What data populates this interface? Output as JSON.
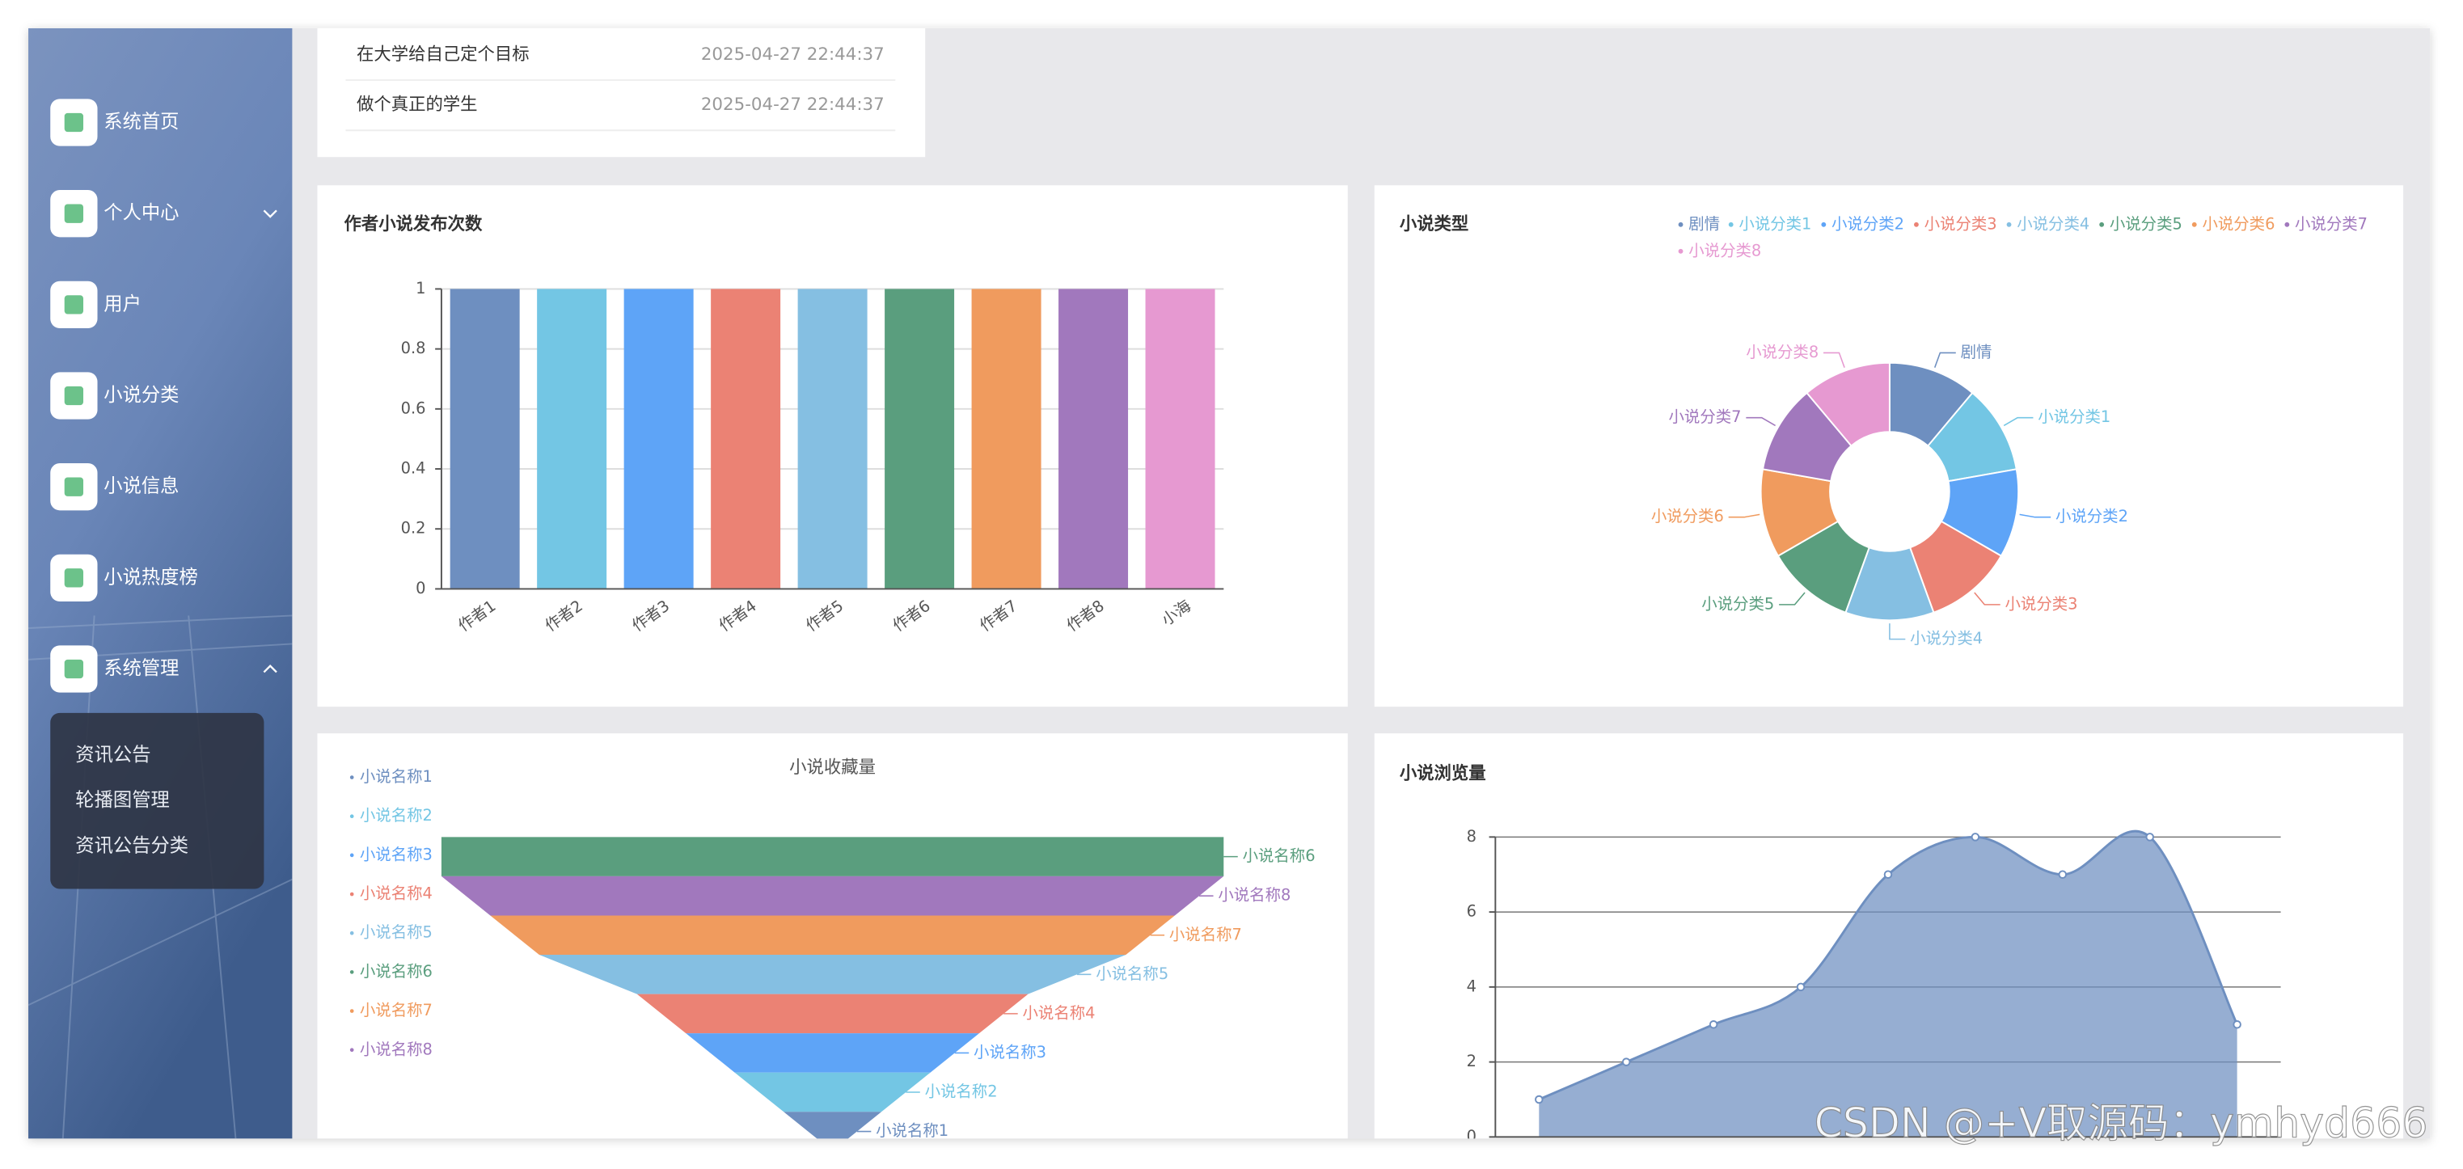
{
  "sidebar": {
    "menu": [
      "系统首页",
      "个人中心",
      "用户",
      "小说分类",
      "小说信息",
      "小说热度榜",
      "系统管理"
    ],
    "submenu": [
      "资讯公告",
      "轮播图管理",
      "资讯公告分类"
    ]
  },
  "notices": [
    {
      "title": "在大学给自己定个目标",
      "time": "2025-04-27 22:44:37"
    },
    {
      "title": "做个真正的学生",
      "time": "2025-04-27 22:44:37"
    }
  ],
  "chart_data": [
    {
      "type": "bar",
      "title": "作者小说发布次数",
      "categories": [
        "作者1",
        "作者2",
        "作者3",
        "作者4",
        "作者5",
        "作者6",
        "作者7",
        "作者8",
        "小海"
      ],
      "values": [
        1,
        1,
        1,
        1,
        1,
        1,
        1,
        1,
        1
      ],
      "colors": [
        "#6e8fc0",
        "#73c6e4",
        "#5ea4f7",
        "#eb8274",
        "#85bfe2",
        "#5a9e7e",
        "#f09b5e",
        "#a178bd",
        "#e699d1"
      ],
      "ylim": [
        0,
        1
      ],
      "yticks": [
        0,
        0.2,
        0.4,
        0.6,
        0.8,
        1
      ],
      "grid": true
    },
    {
      "type": "pie",
      "title": "小说类型",
      "categories": [
        "剧情",
        "小说分类1",
        "小说分类2",
        "小说分类3",
        "小说分类4",
        "小说分类5",
        "小说分类6",
        "小说分类7",
        "小说分类8"
      ],
      "values": [
        1,
        1,
        1,
        1,
        1,
        1,
        1,
        1,
        1
      ],
      "colors": [
        "#6e8fc0",
        "#73c6e4",
        "#5ea4f7",
        "#eb8274",
        "#85bfe2",
        "#5a9e7e",
        "#f09b5e",
        "#a178bd",
        "#e699d1"
      ],
      "donut": true,
      "legend": "top-right"
    },
    {
      "type": "funnel",
      "title": "小说收藏量",
      "legend": [
        "小说名称1",
        "小说名称2",
        "小说名称3",
        "小说名称4",
        "小说名称5",
        "小说名称6",
        "小说名称7",
        "小说名称8"
      ],
      "categories": [
        "小说名称6",
        "小说名称8",
        "小说名称7",
        "小说名称5",
        "小说名称4",
        "小说名称3",
        "小说名称2",
        "小说名称1"
      ],
      "values": [
        8,
        8,
        7,
        6,
        4,
        3,
        2,
        1
      ],
      "colors": [
        "#5a9e7e",
        "#a178bd",
        "#f09b5e",
        "#85bfe2",
        "#eb8274",
        "#5ea4f7",
        "#73c6e4",
        "#6e8fc0"
      ]
    },
    {
      "type": "area",
      "title": "小说浏览量",
      "categories": [
        null,
        null,
        null,
        null,
        null,
        null,
        null,
        null,
        null
      ],
      "values": [
        1,
        2,
        3,
        4,
        7,
        8,
        7,
        8,
        3
      ],
      "color": "#6e8fc0",
      "ylim": [
        0,
        8
      ],
      "yticks": [
        0,
        2,
        4,
        6,
        8
      ],
      "grid": true,
      "smooth": true
    }
  ],
  "watermark": "CSDN @+V取源码：ymhyd666"
}
